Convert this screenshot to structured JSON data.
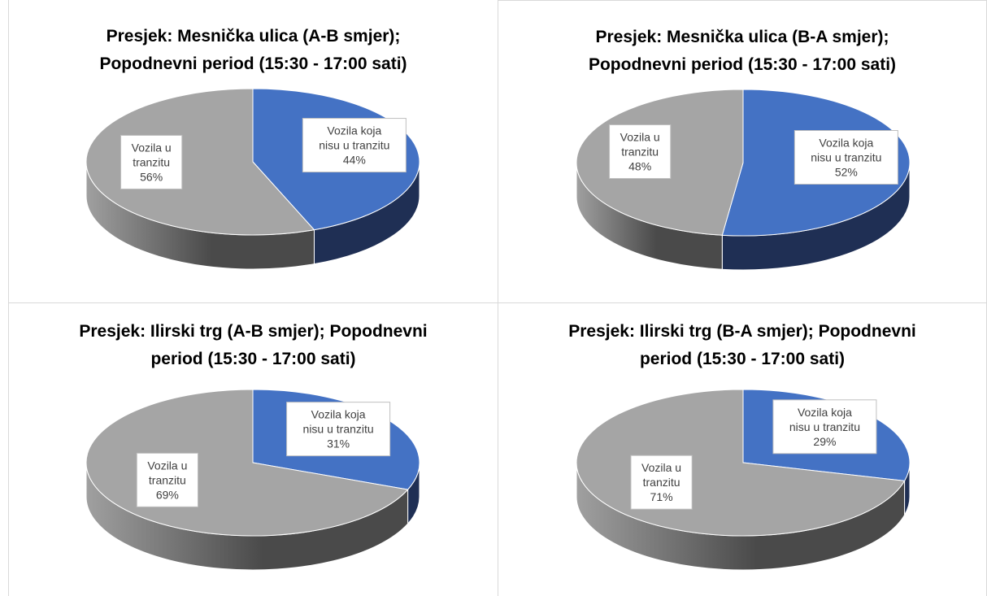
{
  "chart_data": [
    {
      "type": "pie",
      "title": "Presjek: Mesnička ulica (A-B smjer);\nPopodnevni period (15:30 - 17:00 sati)",
      "title_lines": [
        "Presjek: Mesnička ulica (A-B smjer);",
        "Popodnevni period (15:30 - 17:00 sati)"
      ],
      "slices": [
        {
          "label_lines": [
            "Vozila koja",
            "nisu u tranzitu"
          ],
          "value": 44,
          "value_text": "44%",
          "color": "#4472c4"
        },
        {
          "label_lines": [
            "Vozila u",
            "tranzitu"
          ],
          "value": 56,
          "value_text": "56%",
          "color": "#a5a5a5"
        }
      ]
    },
    {
      "type": "pie",
      "title": "Presjek: Mesnička ulica (B-A smjer);\nPopodnevni period (15:30 - 17:00 sati)",
      "title_lines": [
        "Presjek: Mesnička ulica (B-A smjer);",
        "Popodnevni period (15:30 - 17:00 sati)"
      ],
      "slices": [
        {
          "label_lines": [
            "Vozila koja",
            "nisu u tranzitu"
          ],
          "value": 52,
          "value_text": "52%",
          "color": "#4472c4"
        },
        {
          "label_lines": [
            "Vozila u",
            "tranzitu"
          ],
          "value": 48,
          "value_text": "48%",
          "color": "#a5a5a5"
        }
      ]
    },
    {
      "type": "pie",
      "title": "Presjek: Ilirski trg (A-B smjer); Popodnevni\nperiod (15:30 - 17:00 sati)",
      "title_lines": [
        "Presjek: Ilirski trg (A-B smjer); Popodnevni",
        "period (15:30 - 17:00 sati)"
      ],
      "slices": [
        {
          "label_lines": [
            "Vozila koja",
            "nisu u tranzitu"
          ],
          "value": 31,
          "value_text": "31%",
          "color": "#4472c4"
        },
        {
          "label_lines": [
            "Vozila u",
            "tranzitu"
          ],
          "value": 69,
          "value_text": "69%",
          "color": "#a5a5a5"
        }
      ]
    },
    {
      "type": "pie",
      "title": "Presjek: Ilirski trg (B-A smjer); Popodnevni\nperiod (15:30 - 17:00 sati)",
      "title_lines": [
        "Presjek: Ilirski trg (B-A smjer); Popodnevni",
        "period (15:30 - 17:00 sati)"
      ],
      "slices": [
        {
          "label_lines": [
            "Vozila koja",
            "nisu u tranzitu"
          ],
          "value": 29,
          "value_text": "29%",
          "color": "#4472c4"
        },
        {
          "label_lines": [
            "Vozila u",
            "tranzitu"
          ],
          "value": 71,
          "value_text": "71%",
          "color": "#a5a5a5"
        }
      ]
    }
  ]
}
